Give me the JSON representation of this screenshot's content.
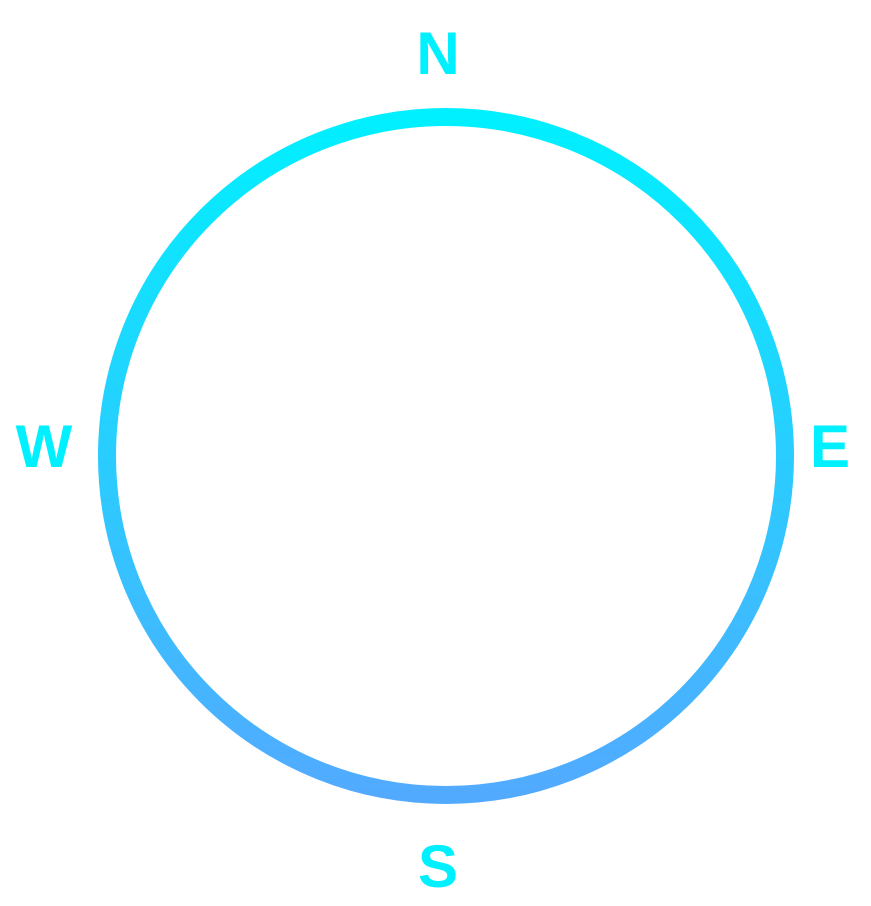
{
  "compass": {
    "labels": {
      "north": "N",
      "east": "E",
      "south": "S",
      "west": "W"
    },
    "colors": {
      "label": "#00f0ff",
      "ring_top": "#00f0ff",
      "ring_bottom": "#52aaff"
    }
  }
}
